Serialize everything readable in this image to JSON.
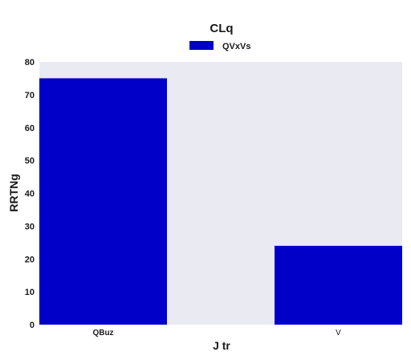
{
  "chart_data": {
    "type": "bar",
    "title": "CLq",
    "xlabel": "J  tr",
    "ylabel": "RRTNg",
    "categories": [
      "QBuz",
      "V"
    ],
    "series": [
      {
        "name": "QVxVs",
        "values": [
          75,
          24
        ]
      }
    ],
    "ylim": [
      0,
      80
    ],
    "yticks": [
      0,
      10,
      20,
      30,
      40,
      50,
      60,
      70,
      80
    ],
    "grid": false,
    "legend": "top-center",
    "colors": {
      "bar": "#0000c8",
      "plot_background": "#eaeaf2"
    }
  }
}
